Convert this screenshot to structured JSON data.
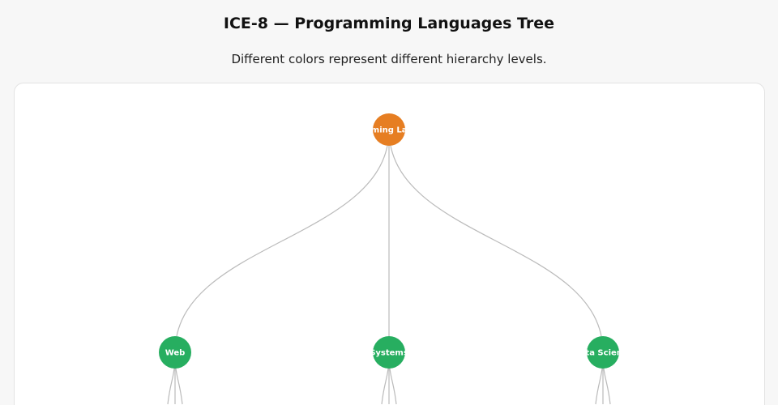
{
  "header": {
    "title": "ICE-8 — Programming Languages Tree",
    "subtitle": "Different colors represent different hierarchy levels."
  },
  "tree": {
    "level_colors": [
      "#e67e22",
      "#27ae60"
    ],
    "edge_color": "#bbbbbb",
    "root": {
      "name": "Programming Languages",
      "children": [
        {
          "name": "Web",
          "child_count": 3
        },
        {
          "name": "Systems",
          "child_count": 3
        },
        {
          "name": "Data Science",
          "child_count": 3
        }
      ]
    }
  }
}
